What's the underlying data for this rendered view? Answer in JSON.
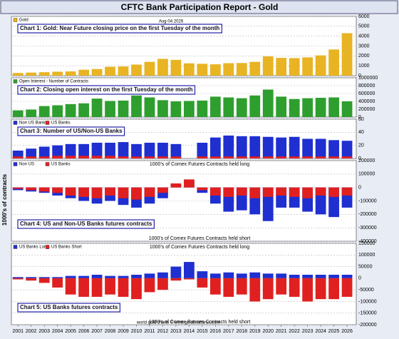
{
  "title": "CFTC Bank Participation Report - Gold",
  "date": "Aug-04 2026",
  "y_axis_label": "1000's of contracts",
  "source": "world gold charts © www.goldchartsrus.com",
  "chart_data": [
    {
      "type": "bar",
      "title": "Chart 1: Gold: Near Future closing price on the first Tuesday of the month",
      "x": [
        2001,
        2002,
        2003,
        2004,
        2005,
        2006,
        2007,
        2008,
        2009,
        2010,
        2011,
        2012,
        2013,
        2014,
        2015,
        2016,
        2017,
        2018,
        2019,
        2020,
        2021,
        2022,
        2023,
        2024,
        2025,
        2026
      ],
      "xlim": [
        2000.5,
        2026.7
      ],
      "series": [
        {
          "name": "Gold",
          "color": "#e8b423",
          "values": [
            270,
            310,
            350,
            400,
            430,
            600,
            670,
            900,
            930,
            1120,
            1400,
            1700,
            1600,
            1250,
            1200,
            1150,
            1260,
            1280,
            1400,
            1950,
            1800,
            1780,
            1850,
            2050,
            2650,
            4300
          ]
        }
      ],
      "ylim": [
        0,
        6000
      ],
      "yticks": [
        0,
        1000,
        2000,
        3000,
        4000,
        5000,
        6000
      ],
      "grid": true
    },
    {
      "type": "bar",
      "title": "Chart 2: Closing open interest on the first Tuesday of the month",
      "x": [
        2001,
        2002,
        2003,
        2004,
        2005,
        2006,
        2007,
        2008,
        2009,
        2010,
        2011,
        2012,
        2013,
        2014,
        2015,
        2016,
        2017,
        2018,
        2019,
        2020,
        2021,
        2022,
        2023,
        2024,
        2025,
        2026
      ],
      "xlim": [
        2000.5,
        2026.7
      ],
      "series": [
        {
          "name": "Open Interest - Number of Contracts",
          "color": "#2e9e2e",
          "values": [
            170000,
            190000,
            280000,
            300000,
            330000,
            350000,
            470000,
            410000,
            420000,
            550000,
            500000,
            430000,
            400000,
            410000,
            420000,
            520000,
            500000,
            480000,
            550000,
            700000,
            520000,
            460000,
            480000,
            490000,
            500000,
            400000
          ]
        }
      ],
      "ylim": [
        0,
        1000000
      ],
      "yticks": [
        0,
        200000,
        400000,
        600000,
        800000,
        1000000
      ],
      "grid": true
    },
    {
      "type": "bar",
      "title": "Chart 3: Number of US/Non-US Banks",
      "x": [
        2001,
        2002,
        2003,
        2004,
        2005,
        2006,
        2007,
        2008,
        2009,
        2010,
        2011,
        2012,
        2013,
        2014,
        2015,
        2016,
        2017,
        2018,
        2019,
        2020,
        2021,
        2022,
        2023,
        2024,
        2025,
        2026
      ],
      "xlim": [
        2000.5,
        2026.7
      ],
      "series": [
        {
          "name": "Non US Banks",
          "color": "#1f2fd0",
          "values": [
            12,
            15,
            18,
            20,
            22,
            22,
            24,
            24,
            25,
            22,
            24,
            24,
            22,
            null,
            24,
            32,
            35,
            34,
            34,
            33,
            32,
            33,
            30,
            30,
            28,
            27
          ]
        },
        {
          "name": "US Banks",
          "color": "#e02020",
          "values": [
            3,
            3,
            3,
            4,
            4,
            4,
            4,
            4,
            3,
            3,
            3,
            3,
            3,
            null,
            3,
            3,
            3,
            3,
            3,
            3,
            3,
            3,
            3,
            3,
            3,
            3
          ]
        }
      ],
      "ylim": [
        0,
        60
      ],
      "yticks": [
        0,
        20,
        40,
        60
      ],
      "grid": true
    },
    {
      "type": "bar",
      "title": "Chart 4: US and Non-US Banks futures contracts",
      "long_label": "1000's of Comex Futures Contracts held long",
      "short_label": "1000's of Comex Futures Contracts held short",
      "x": [
        2001,
        2002,
        2003,
        2004,
        2005,
        2006,
        2007,
        2008,
        2009,
        2010,
        2011,
        2012,
        2013,
        2014,
        2015,
        2016,
        2017,
        2018,
        2019,
        2020,
        2021,
        2022,
        2023,
        2024,
        2025,
        2026
      ],
      "xlim": [
        2000.5,
        2026.7
      ],
      "series": [
        {
          "name": "Non US",
          "color": "#1f2fd0",
          "values": [
            -20000,
            -30000,
            -40000,
            -60000,
            -80000,
            -100000,
            -120000,
            -100000,
            -130000,
            -150000,
            -120000,
            -80000,
            20000,
            50000,
            -40000,
            -120000,
            -180000,
            -170000,
            -200000,
            -250000,
            -150000,
            -150000,
            -180000,
            -200000,
            -220000,
            -150000
          ]
        },
        {
          "name": "US Banks",
          "color": "#e02020",
          "values": [
            -10000,
            -20000,
            -30000,
            -40000,
            -60000,
            -70000,
            -80000,
            -60000,
            -80000,
            -90000,
            -70000,
            -40000,
            30000,
            60000,
            -20000,
            -60000,
            -70000,
            -60000,
            -80000,
            -70000,
            -60000,
            -70000,
            -80000,
            -60000,
            -70000,
            -60000
          ]
        }
      ],
      "ylim": [
        -400000,
        200000
      ],
      "yticks": [
        -400000,
        -300000,
        -200000,
        -100000,
        0,
        100000,
        200000
      ],
      "grid": true
    },
    {
      "type": "bar",
      "title": "Chart 5: US Banks futures contracts",
      "long_label": "1000's of Comex Futures Contracts held long",
      "short_label": "1000's of Comex Futures Contracts held short",
      "x": [
        2001,
        2002,
        2003,
        2004,
        2005,
        2006,
        2007,
        2008,
        2009,
        2010,
        2011,
        2012,
        2013,
        2014,
        2015,
        2016,
        2017,
        2018,
        2019,
        2020,
        2021,
        2022,
        2023,
        2024,
        2025,
        2026
      ],
      "xlim": [
        2000.5,
        2026.7
      ],
      "xticks": [
        2001,
        2002,
        2003,
        2004,
        2005,
        2006,
        2007,
        2008,
        2009,
        2010,
        2011,
        2012,
        2013,
        2014,
        2015,
        2016,
        2017,
        2018,
        2019,
        2020,
        2021,
        2022,
        2023,
        2024,
        2025,
        2026
      ],
      "series": [
        {
          "name": "US Banks Long",
          "color": "#1f2fd0",
          "values": [
            5000,
            5000,
            5000,
            5000,
            10000,
            10000,
            15000,
            10000,
            10000,
            15000,
            20000,
            25000,
            50000,
            70000,
            30000,
            20000,
            25000,
            20000,
            25000,
            20000,
            20000,
            15000,
            15000,
            15000,
            15000,
            15000
          ]
        },
        {
          "name": "US Banks Short",
          "color": "#e02020",
          "values": [
            -5000,
            -10000,
            -20000,
            -40000,
            -70000,
            -80000,
            -80000,
            -70000,
            -80000,
            -90000,
            -60000,
            -50000,
            -10000,
            -5000,
            -40000,
            -70000,
            -80000,
            -70000,
            -100000,
            -90000,
            -70000,
            -80000,
            -100000,
            -90000,
            -90000,
            -80000
          ]
        }
      ],
      "ylim": [
        -200000,
        150000
      ],
      "yticks": [
        -200000,
        -150000,
        -100000,
        -50000,
        0,
        50000,
        100000,
        150000
      ],
      "grid": true
    }
  ]
}
